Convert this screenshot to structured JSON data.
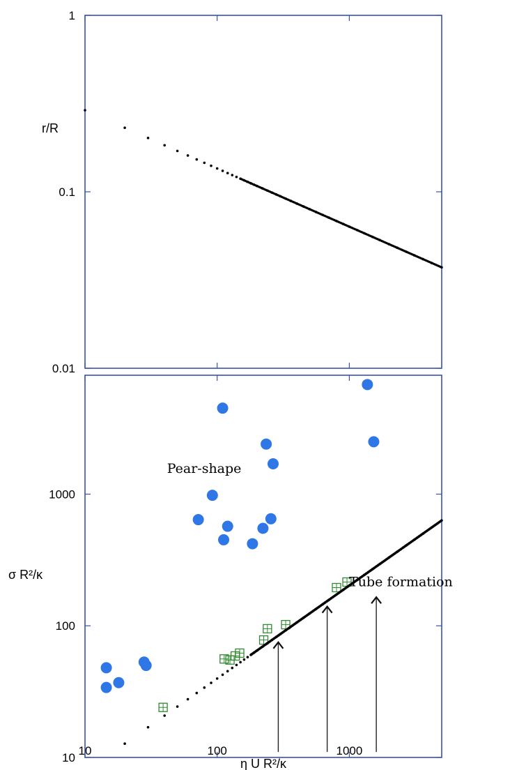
{
  "chart_data": [
    {
      "type": "scatter",
      "xscale": "log",
      "yscale": "log",
      "xlim": [
        10,
        5000
      ],
      "ylim": [
        0.01,
        1
      ],
      "ylabel": "r/R",
      "xlabel": "",
      "y_tick_labels": [
        "1",
        "0.1",
        "0.01"
      ],
      "y_ticks": [
        1,
        0.1,
        0.01
      ],
      "series": [
        {
          "style": "small-black-dots",
          "color": "#000000",
          "power_law": {
            "x0": 10,
            "y0": 0.29,
            "exponent": -0.33
          },
          "x": [
            10,
            20,
            30,
            40,
            50,
            60,
            70,
            80,
            90,
            100,
            110,
            120,
            130,
            140,
            150,
            160,
            170,
            180,
            190,
            200,
            220,
            240,
            260,
            280,
            300,
            330,
            360,
            400,
            450,
            500,
            560,
            630,
            700,
            800,
            900,
            1000,
            1150,
            1300,
            1500,
            1700,
            2000,
            2300,
            2700,
            3100,
            3600,
            4200,
            5000
          ],
          "y": [
            0.29,
            0.23,
            0.2,
            0.18,
            0.17,
            0.16,
            0.15,
            0.145,
            0.14,
            0.135,
            0.13,
            0.126,
            0.123,
            0.12,
            0.118,
            0.115,
            0.113,
            0.111,
            0.109,
            0.107,
            0.104,
            0.101,
            0.098,
            0.096,
            0.093,
            0.09,
            0.088,
            0.085,
            0.082,
            0.079,
            0.076,
            0.074,
            0.071,
            0.068,
            0.066,
            0.063,
            0.061,
            0.058,
            0.056,
            0.053,
            0.051,
            0.048,
            0.046,
            0.044,
            0.042,
            0.04,
            0.038
          ]
        }
      ]
    },
    {
      "type": "scatter",
      "xscale": "log",
      "yscale": "log",
      "xlim": [
        10,
        5000
      ],
      "ylim": [
        10,
        8000
      ],
      "xlabel": "η U R²/κ",
      "ylabel": "σ R²/κ",
      "x_tick_labels": [
        "10",
        "100",
        "1000"
      ],
      "x_ticks": [
        10,
        100,
        1000
      ],
      "y_tick_labels": [
        "10",
        "100",
        "1000"
      ],
      "y_ticks": [
        10,
        100,
        1000
      ],
      "annotations": [
        {
          "text": "Pear-shape",
          "x": 100,
          "y": 1450
        },
        {
          "text": "Tube formation",
          "x": 1400,
          "y": 200
        }
      ],
      "arrows": [
        {
          "x": 290,
          "y_from": 11,
          "y_to": 75
        },
        {
          "x": 680,
          "y_from": 11,
          "y_to": 140
        },
        {
          "x": 1600,
          "y_from": 11,
          "y_to": 165
        }
      ],
      "series": [
        {
          "style": "blue-circles",
          "color": "#2f77e6",
          "x": [
            14.5,
            14.5,
            18,
            28,
            29,
            72,
            92,
            110,
            120,
            112,
            185,
            222,
            235,
            255,
            265,
            1370,
            1530
          ],
          "y": [
            48,
            34,
            37,
            53,
            50,
            640,
            980,
            4500,
            570,
            450,
            420,
            550,
            2400,
            650,
            1700,
            6800,
            2500
          ]
        },
        {
          "style": "green-squares",
          "color": "#2e8b2e",
          "x": [
            39,
            113,
            125,
            137,
            148,
            225,
            240,
            330,
            800,
            960
          ],
          "y": [
            24,
            56,
            55,
            59,
            62,
            78,
            95,
            102,
            195,
            215
          ]
        },
        {
          "style": "small-black-dots",
          "color": "#000000",
          "power_law": {
            "x0": 10,
            "y0": 7.8,
            "exponent": 0.707
          },
          "x": [
            10,
            20,
            30,
            40,
            50,
            60,
            70,
            80,
            90,
            100,
            110,
            120,
            130,
            140,
            150,
            160,
            170,
            180,
            190,
            200,
            220,
            240,
            260,
            280,
            300,
            330,
            360,
            400,
            450,
            500,
            560,
            630,
            700,
            800,
            900,
            1000,
            1150,
            1300,
            1500,
            1700,
            2000,
            2300,
            2700,
            3100,
            3600,
            4200,
            5000
          ],
          "y": [
            7.8,
            16,
            21,
            26,
            28,
            32,
            36,
            40,
            43,
            46,
            50,
            52,
            55,
            58,
            61,
            63,
            66,
            68,
            70,
            73,
            77,
            82,
            86,
            90,
            95,
            100,
            107,
            114,
            123,
            132,
            143,
            154,
            166,
            182,
            197,
            212,
            233,
            254,
            280,
            306,
            350,
            385,
            430,
            480,
            540,
            600,
            660
          ]
        }
      ]
    }
  ]
}
